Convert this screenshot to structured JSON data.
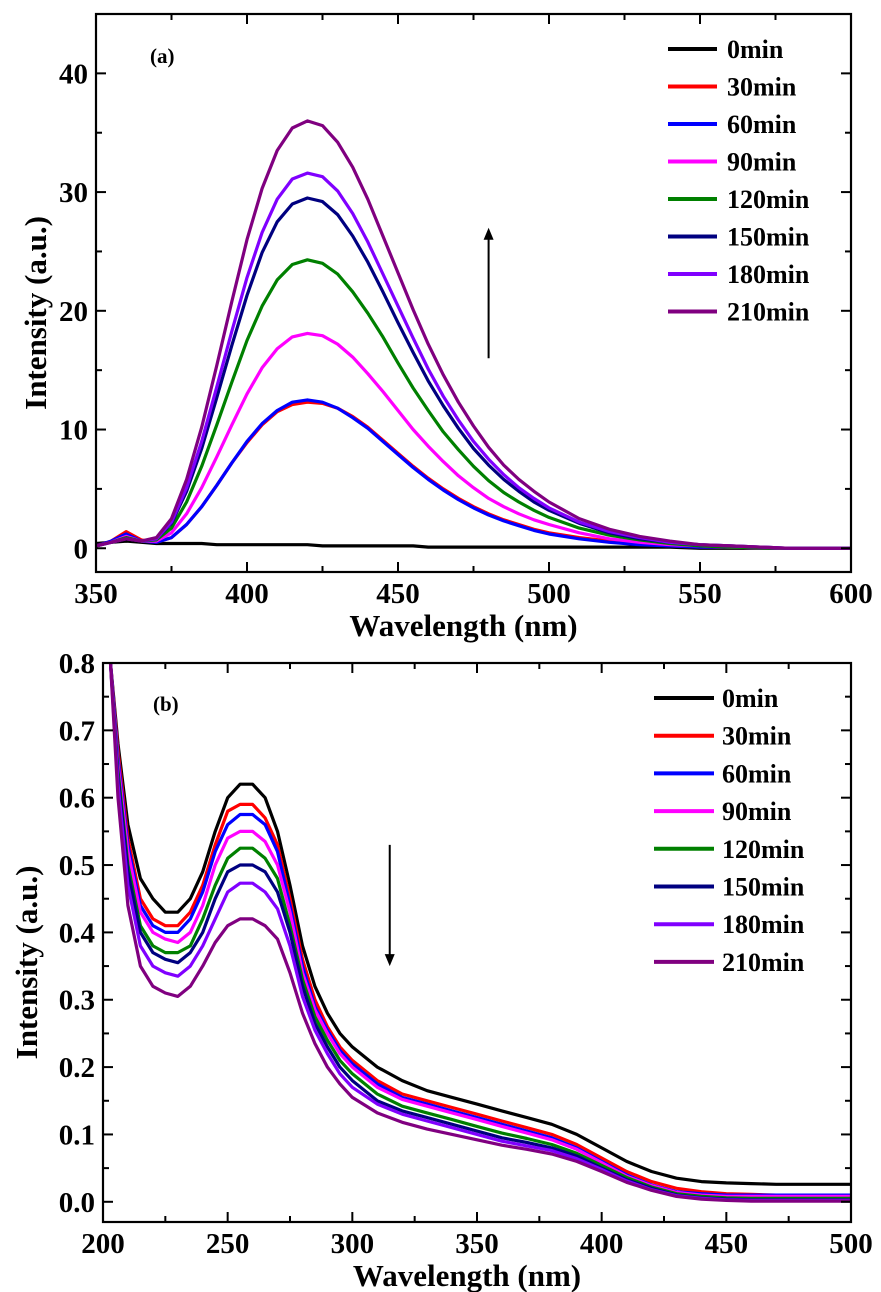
{
  "chart_data": [
    {
      "type": "line",
      "panel_label": "(a)",
      "xlabel": "Wavelength (nm)",
      "ylabel": "Intensity (a.u.)",
      "xlim": [
        350,
        600
      ],
      "ylim": [
        -2,
        45
      ],
      "xticks": [
        350,
        400,
        450,
        500,
        550,
        600
      ],
      "yticks": [
        0,
        10,
        20,
        30,
        40
      ],
      "legend_position": "top-right",
      "arrow_direction": "up",
      "arrow_x": 480,
      "arrow_y_range": [
        16,
        27
      ],
      "x": [
        350,
        355,
        360,
        365,
        370,
        375,
        380,
        385,
        390,
        395,
        400,
        405,
        410,
        415,
        420,
        425,
        430,
        435,
        440,
        445,
        450,
        455,
        460,
        465,
        470,
        475,
        480,
        485,
        490,
        495,
        500,
        510,
        520,
        530,
        540,
        550,
        560,
        580,
        600
      ],
      "series": [
        {
          "name": "0min",
          "color": "#000000",
          "values": [
            0.4,
            0.5,
            0.6,
            0.5,
            0.4,
            0.4,
            0.4,
            0.4,
            0.3,
            0.3,
            0.3,
            0.3,
            0.3,
            0.3,
            0.3,
            0.2,
            0.2,
            0.2,
            0.2,
            0.2,
            0.2,
            0.2,
            0.1,
            0.1,
            0.1,
            0.1,
            0.1,
            0.1,
            0.1,
            0.1,
            0.1,
            0.1,
            0.1,
            0.1,
            0.1,
            0.0,
            0.0,
            0.0,
            0.0
          ]
        },
        {
          "name": "30min",
          "color": "#ff0000",
          "values": [
            0.2,
            0.6,
            1.4,
            0.7,
            0.5,
            0.9,
            2.0,
            3.5,
            5.3,
            7.2,
            8.9,
            10.4,
            11.5,
            12.1,
            12.3,
            12.2,
            11.8,
            11.1,
            10.2,
            9.1,
            8.0,
            6.9,
            5.9,
            5.0,
            4.2,
            3.5,
            2.9,
            2.4,
            2.0,
            1.6,
            1.3,
            0.9,
            0.6,
            0.4,
            0.2,
            0.1,
            0.1,
            0.0,
            0.0
          ]
        },
        {
          "name": "60min",
          "color": "#0000ff",
          "values": [
            0.2,
            0.6,
            1.2,
            0.6,
            0.5,
            0.9,
            2.0,
            3.5,
            5.3,
            7.2,
            9.0,
            10.5,
            11.6,
            12.3,
            12.5,
            12.3,
            11.8,
            11.0,
            10.1,
            9.0,
            7.9,
            6.8,
            5.8,
            4.9,
            4.1,
            3.4,
            2.8,
            2.3,
            1.9,
            1.5,
            1.2,
            0.8,
            0.5,
            0.3,
            0.2,
            0.1,
            0.1,
            0.0,
            0.0
          ]
        },
        {
          "name": "90min",
          "color": "#ff00ff",
          "values": [
            0.2,
            0.5,
            1.0,
            0.6,
            0.6,
            1.3,
            2.9,
            5.1,
            7.7,
            10.4,
            13.0,
            15.2,
            16.8,
            17.8,
            18.1,
            17.9,
            17.2,
            16.1,
            14.7,
            13.2,
            11.6,
            10.0,
            8.6,
            7.3,
            6.1,
            5.1,
            4.2,
            3.5,
            2.9,
            2.4,
            2.0,
            1.3,
            0.8,
            0.5,
            0.3,
            0.2,
            0.1,
            0.0,
            0.0
          ]
        },
        {
          "name": "120min",
          "color": "#008000",
          "values": [
            0.2,
            0.5,
            0.9,
            0.6,
            0.7,
            1.7,
            3.9,
            6.9,
            10.4,
            14.0,
            17.5,
            20.4,
            22.6,
            23.9,
            24.3,
            24.0,
            23.1,
            21.6,
            19.8,
            17.8,
            15.6,
            13.5,
            11.6,
            9.8,
            8.3,
            6.9,
            5.7,
            4.7,
            3.9,
            3.2,
            2.6,
            1.7,
            1.1,
            0.7,
            0.4,
            0.2,
            0.1,
            0.0,
            0.0
          ]
        },
        {
          "name": "150min",
          "color": "#000080",
          "values": [
            0.2,
            0.5,
            0.8,
            0.6,
            0.8,
            2.1,
            4.8,
            8.4,
            12.7,
            17.1,
            21.3,
            24.9,
            27.5,
            29.0,
            29.5,
            29.2,
            28.1,
            26.3,
            24.1,
            21.6,
            19.0,
            16.5,
            14.1,
            12.0,
            10.1,
            8.4,
            7.0,
            5.8,
            4.8,
            3.9,
            3.2,
            2.1,
            1.3,
            0.8,
            0.5,
            0.3,
            0.2,
            0.0,
            0.0
          ]
        },
        {
          "name": "180min",
          "color": "#8000ff",
          "values": [
            0.2,
            0.5,
            0.8,
            0.6,
            0.8,
            2.2,
            5.1,
            9.0,
            13.6,
            18.3,
            22.8,
            26.6,
            29.4,
            31.1,
            31.6,
            31.3,
            30.1,
            28.2,
            25.8,
            23.1,
            20.4,
            17.7,
            15.1,
            12.8,
            10.8,
            9.0,
            7.5,
            6.2,
            5.1,
            4.2,
            3.4,
            2.2,
            1.4,
            0.9,
            0.5,
            0.3,
            0.2,
            0.0,
            0.0
          ]
        },
        {
          "name": "210min",
          "color": "#800080",
          "values": [
            0.2,
            0.5,
            0.8,
            0.6,
            0.9,
            2.5,
            5.8,
            10.2,
            15.4,
            20.8,
            26.0,
            30.3,
            33.5,
            35.4,
            36.0,
            35.6,
            34.2,
            32.1,
            29.4,
            26.3,
            23.2,
            20.1,
            17.2,
            14.6,
            12.3,
            10.3,
            8.5,
            7.0,
            5.8,
            4.8,
            3.9,
            2.5,
            1.6,
            1.0,
            0.6,
            0.3,
            0.2,
            0.0,
            0.0
          ]
        }
      ]
    },
    {
      "type": "line",
      "panel_label": "(b)",
      "xlabel": "Wavelength (nm)",
      "ylabel": "Intensity (a.u.)",
      "xlim": [
        200,
        500
      ],
      "ylim": [
        -0.03,
        0.8
      ],
      "xticks": [
        200,
        250,
        300,
        350,
        400,
        450,
        500
      ],
      "yticks": [
        0.0,
        0.1,
        0.2,
        0.3,
        0.4,
        0.5,
        0.6,
        0.7,
        0.8
      ],
      "legend_position": "top-right",
      "arrow_direction": "down",
      "arrow_x": 315,
      "arrow_y_range": [
        0.35,
        0.53
      ],
      "x": [
        203,
        206,
        210,
        215,
        220,
        225,
        230,
        235,
        240,
        245,
        250,
        255,
        260,
        265,
        270,
        275,
        280,
        285,
        290,
        295,
        300,
        310,
        320,
        330,
        340,
        350,
        360,
        370,
        380,
        390,
        400,
        410,
        420,
        430,
        440,
        450,
        460,
        470,
        480,
        490,
        500
      ],
      "series": [
        {
          "name": "0min",
          "color": "#000000",
          "values": [
            0.8,
            0.68,
            0.56,
            0.48,
            0.45,
            0.43,
            0.43,
            0.45,
            0.49,
            0.55,
            0.6,
            0.62,
            0.62,
            0.6,
            0.55,
            0.47,
            0.38,
            0.32,
            0.28,
            0.25,
            0.23,
            0.2,
            0.18,
            0.165,
            0.155,
            0.145,
            0.135,
            0.125,
            0.115,
            0.1,
            0.08,
            0.06,
            0.045,
            0.035,
            0.03,
            0.028,
            0.027,
            0.026,
            0.026,
            0.026,
            0.026
          ]
        },
        {
          "name": "30min",
          "color": "#ff0000",
          "values": [
            0.8,
            0.67,
            0.54,
            0.45,
            0.42,
            0.41,
            0.41,
            0.43,
            0.47,
            0.53,
            0.58,
            0.59,
            0.59,
            0.57,
            0.53,
            0.45,
            0.36,
            0.3,
            0.26,
            0.23,
            0.21,
            0.18,
            0.16,
            0.15,
            0.14,
            0.13,
            0.12,
            0.11,
            0.1,
            0.085,
            0.065,
            0.045,
            0.03,
            0.02,
            0.015,
            0.012,
            0.011,
            0.01,
            0.01,
            0.01,
            0.01
          ]
        },
        {
          "name": "60min",
          "color": "#0000ff",
          "values": [
            0.8,
            0.66,
            0.53,
            0.44,
            0.41,
            0.4,
            0.4,
            0.42,
            0.46,
            0.52,
            0.56,
            0.575,
            0.575,
            0.56,
            0.52,
            0.44,
            0.35,
            0.29,
            0.255,
            0.225,
            0.205,
            0.175,
            0.155,
            0.145,
            0.135,
            0.125,
            0.115,
            0.105,
            0.095,
            0.08,
            0.06,
            0.04,
            0.025,
            0.015,
            0.012,
            0.01,
            0.01,
            0.01,
            0.01,
            0.01,
            0.01
          ]
        },
        {
          "name": "90min",
          "color": "#ff00ff",
          "values": [
            0.8,
            0.65,
            0.52,
            0.43,
            0.4,
            0.39,
            0.385,
            0.4,
            0.44,
            0.5,
            0.54,
            0.55,
            0.55,
            0.535,
            0.5,
            0.43,
            0.34,
            0.285,
            0.25,
            0.22,
            0.2,
            0.17,
            0.152,
            0.142,
            0.132,
            0.122,
            0.112,
            0.102,
            0.092,
            0.078,
            0.058,
            0.038,
            0.024,
            0.014,
            0.01,
            0.008,
            0.008,
            0.008,
            0.008,
            0.008,
            0.008
          ]
        },
        {
          "name": "120min",
          "color": "#008000",
          "values": [
            0.8,
            0.64,
            0.5,
            0.41,
            0.38,
            0.37,
            0.37,
            0.38,
            0.42,
            0.47,
            0.51,
            0.525,
            0.525,
            0.51,
            0.48,
            0.41,
            0.33,
            0.275,
            0.24,
            0.21,
            0.19,
            0.16,
            0.142,
            0.132,
            0.122,
            0.112,
            0.102,
            0.094,
            0.085,
            0.072,
            0.054,
            0.036,
            0.022,
            0.012,
            0.008,
            0.006,
            0.005,
            0.005,
            0.005,
            0.005,
            0.005
          ]
        },
        {
          "name": "150min",
          "color": "#000080",
          "values": [
            0.8,
            0.63,
            0.49,
            0.4,
            0.37,
            0.36,
            0.355,
            0.37,
            0.4,
            0.45,
            0.49,
            0.5,
            0.5,
            0.49,
            0.46,
            0.4,
            0.32,
            0.265,
            0.23,
            0.2,
            0.18,
            0.15,
            0.135,
            0.125,
            0.115,
            0.105,
            0.095,
            0.088,
            0.08,
            0.068,
            0.05,
            0.033,
            0.02,
            0.01,
            0.006,
            0.004,
            0.003,
            0.003,
            0.003,
            0.003,
            0.003
          ]
        },
        {
          "name": "180min",
          "color": "#8000ff",
          "values": [
            0.8,
            0.62,
            0.47,
            0.38,
            0.35,
            0.34,
            0.335,
            0.35,
            0.38,
            0.42,
            0.46,
            0.473,
            0.473,
            0.46,
            0.435,
            0.38,
            0.305,
            0.255,
            0.22,
            0.19,
            0.17,
            0.145,
            0.13,
            0.12,
            0.11,
            0.1,
            0.09,
            0.083,
            0.076,
            0.064,
            0.048,
            0.031,
            0.018,
            0.009,
            0.005,
            0.003,
            0.002,
            0.002,
            0.002,
            0.002,
            0.002
          ]
        },
        {
          "name": "210min",
          "color": "#800080",
          "values": [
            0.8,
            0.6,
            0.44,
            0.35,
            0.32,
            0.31,
            0.305,
            0.32,
            0.35,
            0.385,
            0.41,
            0.42,
            0.42,
            0.41,
            0.39,
            0.34,
            0.28,
            0.235,
            0.2,
            0.175,
            0.155,
            0.132,
            0.118,
            0.108,
            0.1,
            0.092,
            0.084,
            0.078,
            0.071,
            0.06,
            0.045,
            0.029,
            0.017,
            0.008,
            0.004,
            0.002,
            0.001,
            0.001,
            0.001,
            0.001,
            0.001
          ]
        }
      ]
    }
  ]
}
